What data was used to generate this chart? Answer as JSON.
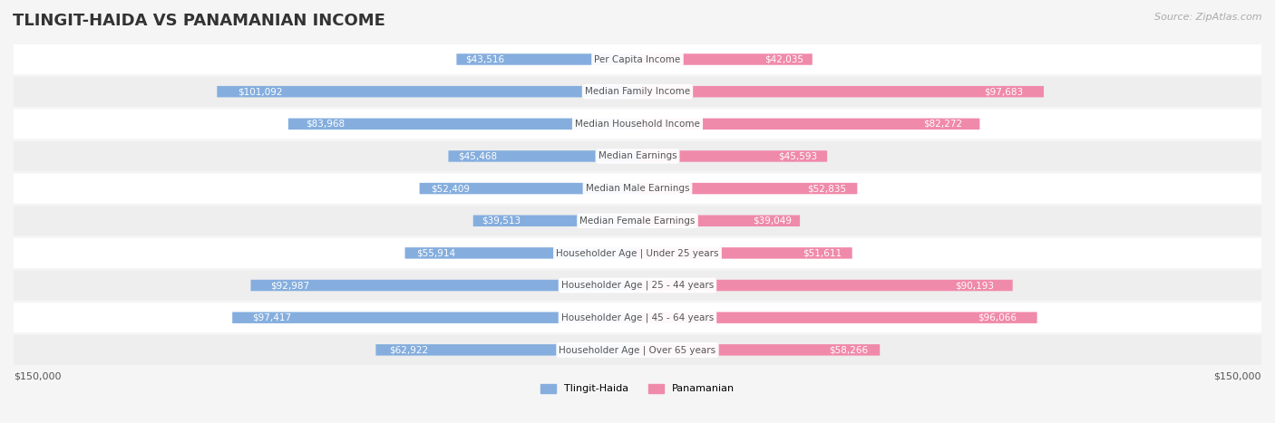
{
  "title": "TLINGIT-HAIDA VS PANAMANIAN INCOME",
  "source": "Source: ZipAtlas.com",
  "categories": [
    "Per Capita Income",
    "Median Family Income",
    "Median Household Income",
    "Median Earnings",
    "Median Male Earnings",
    "Median Female Earnings",
    "Householder Age | Under 25 years",
    "Householder Age | 25 - 44 years",
    "Householder Age | 45 - 64 years",
    "Householder Age | Over 65 years"
  ],
  "tlingit_values": [
    43516,
    101092,
    83968,
    45468,
    52409,
    39513,
    55914,
    92987,
    97417,
    62922
  ],
  "panamanian_values": [
    42035,
    97683,
    82272,
    45593,
    52835,
    39049,
    51611,
    90193,
    96066,
    58266
  ],
  "tlingit_labels": [
    "$43,516",
    "$101,092",
    "$83,968",
    "$45,468",
    "$52,409",
    "$39,513",
    "$55,914",
    "$92,987",
    "$97,417",
    "$62,922"
  ],
  "panamanian_labels": [
    "$42,035",
    "$97,683",
    "$82,272",
    "$45,593",
    "$52,835",
    "$39,049",
    "$51,611",
    "$90,193",
    "$96,066",
    "$58,266"
  ],
  "tlingit_color": "#85aede",
  "panamanian_color": "#f08aaa",
  "tlingit_label_color_inside": "#ffffff",
  "tlingit_label_color_outside": "#888888",
  "panamanian_label_color_inside": "#ffffff",
  "panamanian_label_color_outside": "#888888",
  "max_value": 150000,
  "bg_color": "#f5f5f5",
  "row_bg_odd": "#ffffff",
  "row_bg_even": "#eeeeee",
  "title_color": "#333333",
  "source_color": "#aaaaaa",
  "legend_tlingit": "Tlingit-Haida",
  "legend_panamanian": "Panamanian",
  "tlingit_inside_threshold": 30000,
  "panamanian_inside_threshold": 30000
}
